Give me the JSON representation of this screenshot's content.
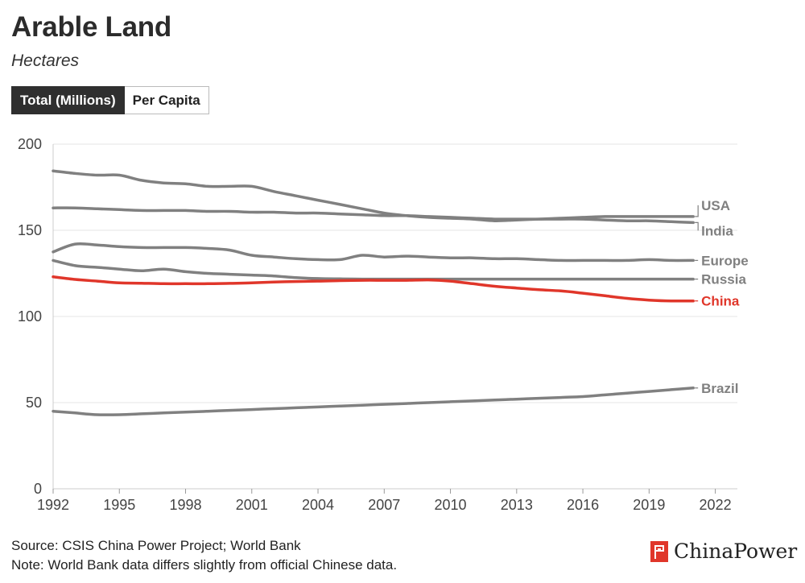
{
  "header": {
    "title": "Arable Land",
    "subtitle": "Hectares"
  },
  "toggle": {
    "options": [
      "Total (Millions)",
      "Per Capita"
    ],
    "selected": "Total (Millions)"
  },
  "footer": {
    "source": "Source: CSIS China Power Project; World Bank",
    "note": "Note: World Bank data differs slightly from official Chinese data.",
    "brand": "ChinaPower"
  },
  "colors": {
    "series_default": "#808080",
    "highlight": "#e0362a",
    "grid": "#e6e6e6",
    "axis_text": "#444444"
  },
  "chart_data": {
    "type": "line",
    "title": "Arable Land",
    "ylabel": "Hectares",
    "xlabel": "",
    "xlim": [
      1992,
      2023
    ],
    "ylim": [
      0,
      200
    ],
    "x_ticks": [
      1992,
      1995,
      1998,
      2001,
      2004,
      2007,
      2010,
      2013,
      2016,
      2019,
      2022
    ],
    "y_ticks": [
      0,
      50,
      100,
      150,
      200
    ],
    "grid": true,
    "x": [
      1992,
      1993,
      1994,
      1995,
      1996,
      1997,
      1998,
      1999,
      2000,
      2001,
      2002,
      2003,
      2004,
      2005,
      2006,
      2007,
      2008,
      2009,
      2010,
      2011,
      2012,
      2013,
      2014,
      2015,
      2016,
      2017,
      2018,
      2019,
      2020,
      2021
    ],
    "series": [
      {
        "name": "USA",
        "highlight": false,
        "values": [
          184.5,
          183,
          182,
          182,
          179,
          177.5,
          177,
          175.5,
          175.5,
          175.5,
          172.5,
          170,
          167.5,
          165,
          162.5,
          160,
          158.5,
          157.5,
          157,
          156.5,
          155.5,
          156,
          156.5,
          157,
          157.5,
          158,
          158,
          158,
          158,
          158
        ]
      },
      {
        "name": "India",
        "highlight": false,
        "values": [
          163,
          163,
          162.5,
          162,
          161.5,
          161.5,
          161.5,
          161,
          161,
          160.5,
          160.5,
          160,
          160,
          159.5,
          159,
          158.5,
          158.5,
          158,
          157.5,
          157,
          156.5,
          156.5,
          156.5,
          156.5,
          156.5,
          156,
          155.5,
          155.5,
          155,
          154.5
        ]
      },
      {
        "name": "Europe",
        "highlight": false,
        "values": [
          137.5,
          142,
          141.5,
          140.5,
          140,
          140,
          140,
          139.5,
          138.5,
          135.5,
          134.5,
          133.5,
          133,
          133,
          135.5,
          134.5,
          135,
          134.5,
          134,
          134,
          133.5,
          133.5,
          133,
          132.5,
          132.5,
          132.5,
          132.5,
          133,
          132.5,
          132.5
        ]
      },
      {
        "name": "Russia",
        "highlight": false,
        "values": [
          132.5,
          129.5,
          128.5,
          127.5,
          126.5,
          127.5,
          126,
          125,
          124.5,
          124,
          123.5,
          122.5,
          122,
          121.8,
          121.7,
          121.7,
          121.7,
          121.7,
          121.7,
          121.7,
          121.7,
          121.7,
          121.7,
          121.7,
          121.7,
          121.7,
          121.7,
          121.7,
          121.7,
          121.7
        ]
      },
      {
        "name": "China",
        "highlight": true,
        "values": [
          123,
          121.5,
          120.5,
          119.5,
          119.3,
          119,
          119,
          119,
          119.2,
          119.5,
          120,
          120.3,
          120.5,
          120.8,
          121,
          121,
          121,
          121.2,
          120.5,
          119,
          117.5,
          116.5,
          115.5,
          114.8,
          113.5,
          112,
          110.5,
          109.5,
          109,
          109
        ]
      },
      {
        "name": "Brazil",
        "highlight": false,
        "values": [
          45,
          44,
          43,
          43,
          43.5,
          44,
          44.5,
          45,
          45.5,
          46,
          46.5,
          47,
          47.5,
          48,
          48.5,
          49,
          49.5,
          50,
          50.5,
          51,
          51.5,
          52,
          52.5,
          53,
          53.5,
          54.5,
          55.5,
          56.5,
          57.5,
          58.5
        ]
      }
    ],
    "labels": [
      {
        "series": "USA",
        "text": "USA"
      },
      {
        "series": "India",
        "text": "India"
      },
      {
        "series": "Europe",
        "text": "Europe"
      },
      {
        "series": "Russia",
        "text": "Russia"
      },
      {
        "series": "China",
        "text": "China"
      },
      {
        "series": "Brazil",
        "text": "Brazil"
      }
    ]
  }
}
